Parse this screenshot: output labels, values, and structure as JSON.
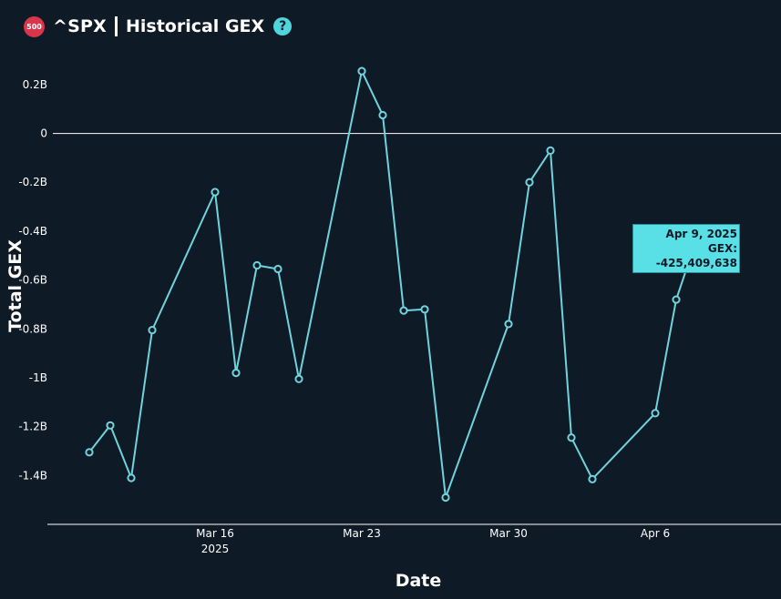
{
  "header": {
    "badge": "500",
    "ticker": "^SPX",
    "title": "Historical GEX",
    "help_icon": "?"
  },
  "tooltip": {
    "date": "Apr 9, 2025",
    "value": "GEX: -425,409,638"
  },
  "colors": {
    "background": "#0f1a27",
    "line": "#6fd3dc",
    "accent": "#4fd6dc",
    "badge": "#d9364b"
  },
  "chart_data": {
    "type": "line",
    "title": "Historical GEX",
    "xlabel": "Date",
    "ylabel": "Total GEX",
    "x_ticks": [
      {
        "date": "2025-03-16",
        "label": "Mar 16",
        "sublabel": "2025"
      },
      {
        "date": "2025-03-23",
        "label": "Mar 23",
        "sublabel": ""
      },
      {
        "date": "2025-03-30",
        "label": "Mar 30",
        "sublabel": ""
      },
      {
        "date": "2025-04-06",
        "label": "Apr 6",
        "sublabel": ""
      }
    ],
    "y_ticks": [
      {
        "value": 0.2,
        "label": "0.2B"
      },
      {
        "value": 0,
        "label": "0"
      },
      {
        "value": -0.2,
        "label": "-0.2B"
      },
      {
        "value": -0.4,
        "label": "-0.4B"
      },
      {
        "value": -0.6,
        "label": "-0.6B"
      },
      {
        "value": -0.8,
        "label": "-0.8B"
      },
      {
        "value": -1.0,
        "label": "-1B"
      },
      {
        "value": -1.2,
        "label": "-1.2B"
      },
      {
        "value": -1.4,
        "label": "-1.4B"
      }
    ],
    "ylim": [
      -1.6,
      0.33
    ],
    "xlim": [
      "2025-03-08",
      "2025-04-12"
    ],
    "zero_line": true,
    "series": [
      {
        "unit": "B",
        "points": [
          {
            "x": "2025-03-10",
            "y": -1.305
          },
          {
            "x": "2025-03-11",
            "y": -1.195
          },
          {
            "x": "2025-03-12",
            "y": -1.41
          },
          {
            "x": "2025-03-13",
            "y": -0.805
          },
          {
            "x": "2025-03-16",
            "y": -0.24
          },
          {
            "x": "2025-03-17",
            "y": -0.98
          },
          {
            "x": "2025-03-18",
            "y": -0.54
          },
          {
            "x": "2025-03-19",
            "y": -0.555
          },
          {
            "x": "2025-03-20",
            "y": -1.005
          },
          {
            "x": "2025-03-23",
            "y": 0.255
          },
          {
            "x": "2025-03-24",
            "y": 0.075
          },
          {
            "x": "2025-03-25",
            "y": -0.725
          },
          {
            "x": "2025-03-26",
            "y": -0.72
          },
          {
            "x": "2025-03-27",
            "y": -1.49
          },
          {
            "x": "2025-03-30",
            "y": -0.78
          },
          {
            "x": "2025-03-31",
            "y": -0.2
          },
          {
            "x": "2025-04-01",
            "y": -0.07
          },
          {
            "x": "2025-04-02",
            "y": -1.245
          },
          {
            "x": "2025-04-03",
            "y": -1.415
          },
          {
            "x": "2025-04-06",
            "y": -1.145
          },
          {
            "x": "2025-04-07",
            "y": -0.68
          },
          {
            "x": "2025-04-08",
            "y": -0.425
          }
        ]
      }
    ]
  }
}
